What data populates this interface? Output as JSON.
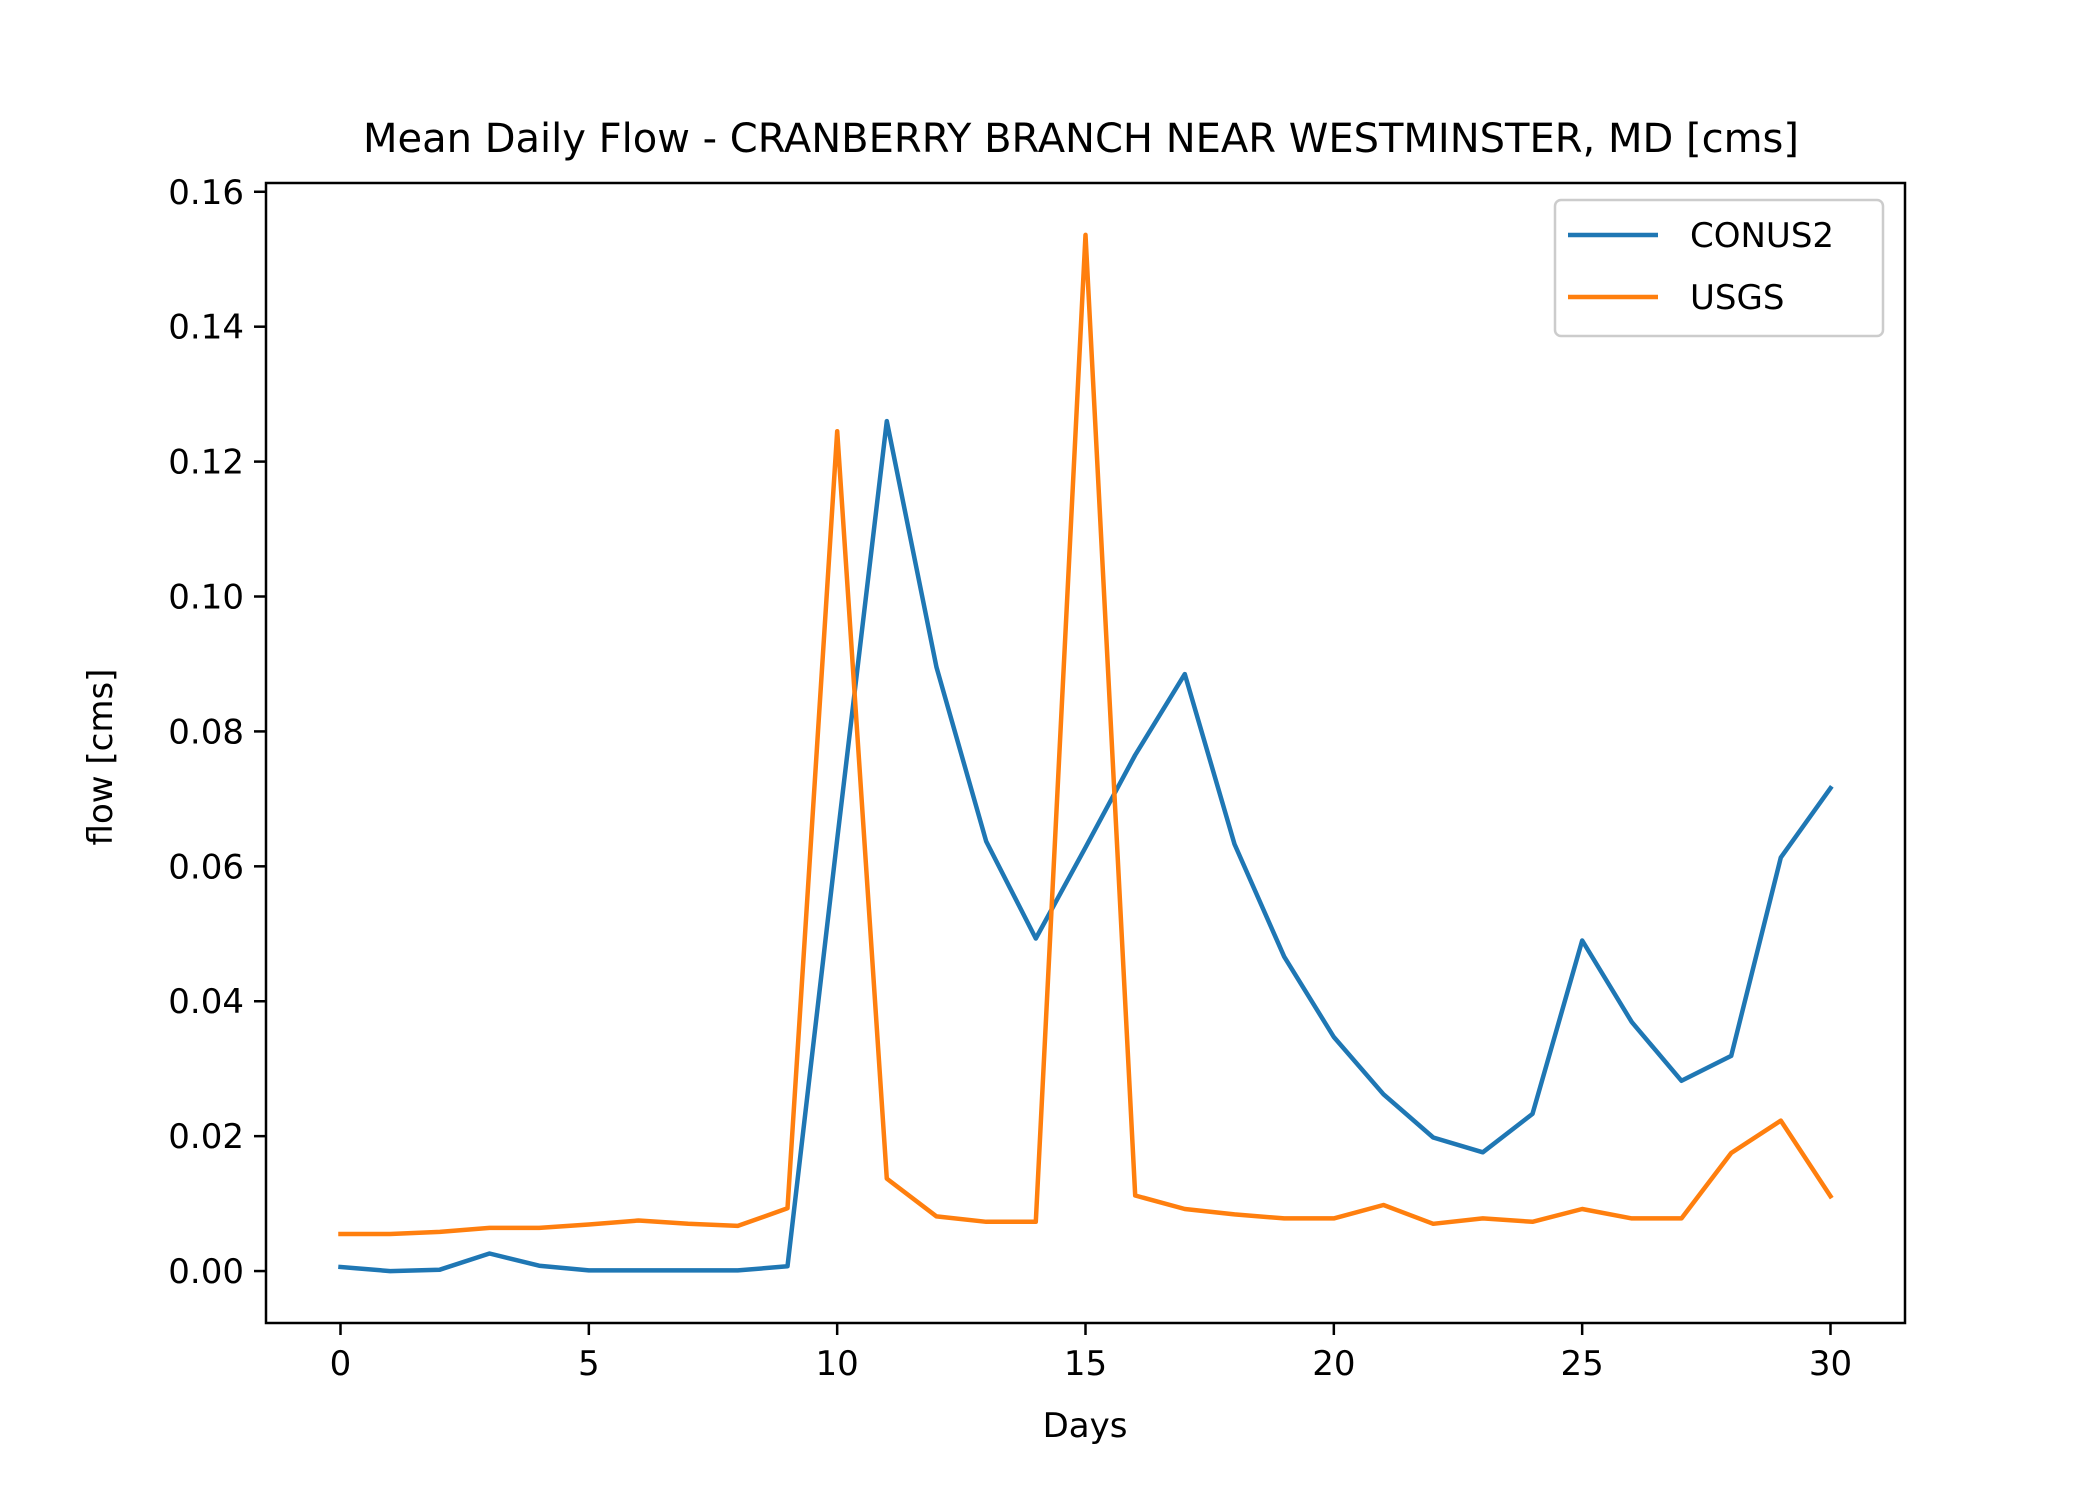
{
  "chart_data": {
    "type": "line",
    "title": "Mean Daily Flow - CRANBERRY BRANCH NEAR WESTMINSTER, MD [cms]",
    "xlabel": "Days",
    "ylabel": "flow [cms]",
    "xlim": [
      -1.5,
      31.5
    ],
    "ylim": [
      -0.0077,
      0.1613
    ],
    "xticks": [
      0,
      5,
      10,
      15,
      20,
      25,
      30
    ],
    "xtick_labels": [
      "0",
      "5",
      "10",
      "15",
      "20",
      "25",
      "30"
    ],
    "yticks": [
      0.0,
      0.02,
      0.04,
      0.06,
      0.08,
      0.1,
      0.12,
      0.14,
      0.16
    ],
    "ytick_labels": [
      "0.00",
      "0.02",
      "0.04",
      "0.06",
      "0.08",
      "0.10",
      "0.12",
      "0.14",
      "0.16"
    ],
    "grid": false,
    "legend_position": "top-right",
    "x": [
      0,
      1,
      2,
      3,
      4,
      5,
      6,
      7,
      8,
      9,
      10,
      11,
      12,
      13,
      14,
      15,
      16,
      17,
      18,
      19,
      20,
      21,
      22,
      23,
      24,
      25,
      26,
      27,
      28,
      29,
      30
    ],
    "series": [
      {
        "name": "CONUS2",
        "color": "#1f77b4",
        "values": [
          0.0006,
          0.0,
          0.0002,
          0.0026,
          0.0008,
          0.0001,
          0.0001,
          0.0001,
          0.0001,
          0.0007,
          0.064,
          0.126,
          0.0895,
          0.0637,
          0.0493,
          0.0628,
          0.0765,
          0.0885,
          0.0633,
          0.0466,
          0.0347,
          0.0262,
          0.0198,
          0.0176,
          0.0233,
          0.049,
          0.0369,
          0.0282,
          0.0319,
          0.0613,
          0.0716
        ]
      },
      {
        "name": "USGS",
        "color": "#ff7f0e",
        "values": [
          0.0055,
          0.0055,
          0.0058,
          0.0064,
          0.0064,
          0.0069,
          0.0075,
          0.007,
          0.0067,
          0.0093,
          0.1245,
          0.0137,
          0.0081,
          0.0073,
          0.0073,
          0.1536,
          0.0112,
          0.0092,
          0.0084,
          0.0078,
          0.0078,
          0.0098,
          0.007,
          0.0078,
          0.0073,
          0.0092,
          0.0078,
          0.0078,
          0.0175,
          0.0223,
          0.0111
        ]
      }
    ]
  }
}
